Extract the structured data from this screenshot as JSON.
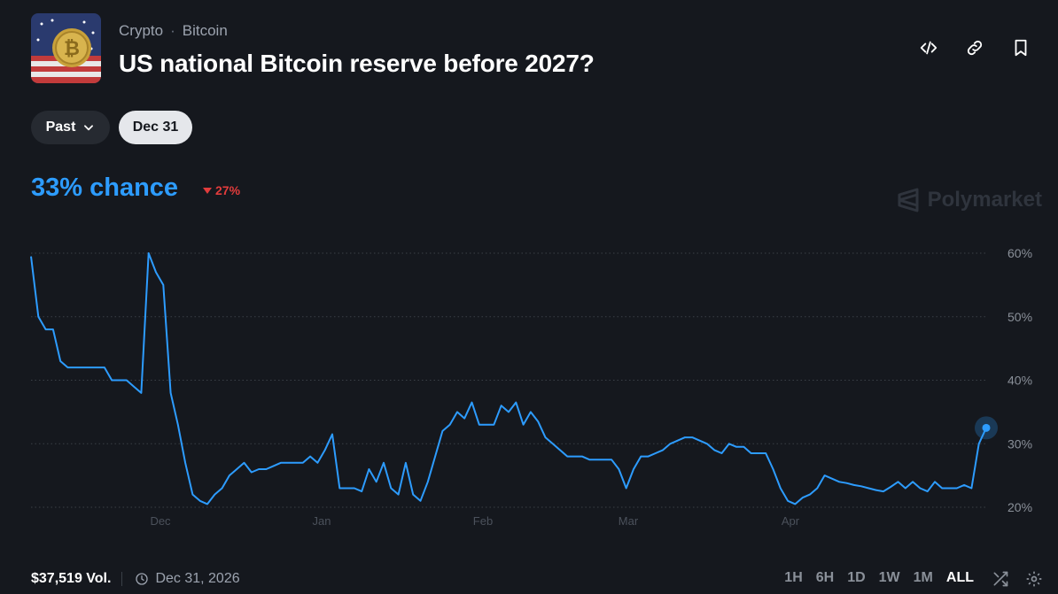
{
  "breadcrumb": {
    "category": "Crypto",
    "separator": "·",
    "subcategory": "Bitcoin"
  },
  "title": "US national Bitcoin reserve before 2027?",
  "header_icons": [
    "embed-code-icon",
    "link-icon",
    "bookmark-icon"
  ],
  "filters": {
    "past_label": "Past",
    "date_label": "Dec 31"
  },
  "chance": {
    "label": "33% chance",
    "delta": "27%",
    "delta_direction": "down",
    "delta_color": "#e23c3c"
  },
  "brand": "Polymarket",
  "footer": {
    "volume": "$37,519 Vol.",
    "end_date": "Dec 31, 2026"
  },
  "time_ranges": [
    "1H",
    "6H",
    "1D",
    "1W",
    "1M",
    "ALL"
  ],
  "active_range": "ALL",
  "colors": {
    "line": "#2d9cff",
    "background": "#15181e"
  },
  "chart_data": {
    "type": "line",
    "x_tick_labels": [
      "Dec",
      "Jan",
      "Feb",
      "Mar",
      "Apr"
    ],
    "y_tick_labels": [
      "60%",
      "50%",
      "40%",
      "30%",
      "20%"
    ],
    "y_ticks": [
      60,
      50,
      40,
      30,
      20
    ],
    "ylim": [
      20,
      60
    ],
    "grid": "horizontal-dotted",
    "series": [
      {
        "values": [
          59.5,
          50,
          48,
          48,
          43,
          42,
          42,
          42,
          42,
          42,
          42,
          40,
          40,
          40,
          39,
          38,
          60,
          57,
          55,
          38,
          33,
          27,
          22,
          21,
          20.5,
          22,
          23,
          25,
          26,
          27,
          25.5,
          26,
          26,
          26.5,
          27,
          27,
          27,
          27,
          28,
          27,
          29,
          31.5,
          23,
          23,
          23,
          22.5,
          26,
          24,
          27,
          23,
          22,
          27,
          22,
          21,
          24,
          28,
          32,
          33,
          35,
          34,
          36.5,
          33,
          33,
          33,
          36,
          35,
          36.5,
          33,
          35,
          33.5,
          31,
          30,
          29,
          28,
          28,
          28,
          27.5,
          27.5,
          27.5,
          27.5,
          26,
          23,
          26,
          28,
          28,
          28.5,
          29,
          30,
          30.5,
          31,
          31,
          30.5,
          30,
          29,
          28.5,
          30,
          29.5,
          29.5,
          28.5,
          28.5,
          28.5,
          26,
          23,
          21,
          20.5,
          21.5,
          22,
          23,
          25,
          24.5,
          24,
          23.8,
          23.5,
          23.3,
          23,
          22.7,
          22.5,
          23.2,
          24,
          23,
          24,
          23,
          22.5,
          24,
          23,
          23,
          23,
          23.5,
          23,
          30,
          32.5
        ]
      }
    ]
  }
}
